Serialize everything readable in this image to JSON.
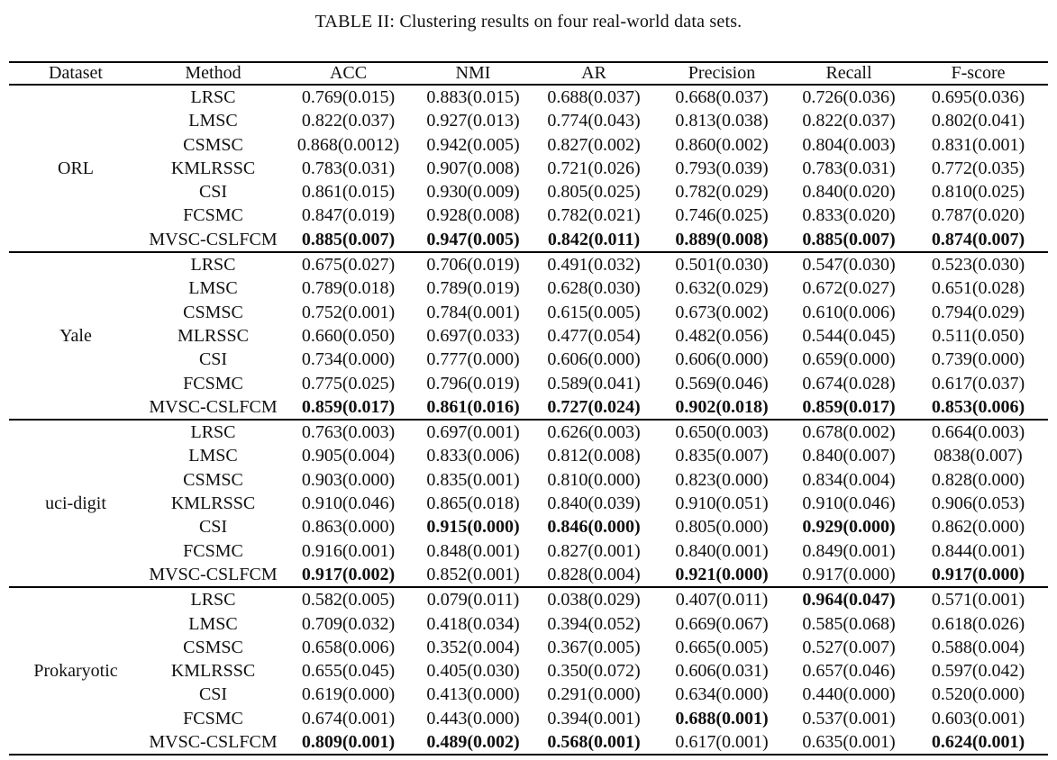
{
  "title": "TABLE II: Clustering results on four real-world data sets.",
  "table": {
    "columns": [
      "Dataset",
      "Method",
      "ACC",
      "NMI",
      "AR",
      "Precision",
      "Recall",
      "F-score"
    ],
    "groups": [
      {
        "dataset": "ORL",
        "rows": [
          {
            "method": "LRSC",
            "values": [
              "0.769(0.015)",
              "0.883(0.015)",
              "0.688(0.037)",
              "0.668(0.037)",
              "0.726(0.036)",
              "0.695(0.036)"
            ],
            "bold": [
              0,
              0,
              0,
              0,
              0,
              0
            ]
          },
          {
            "method": "LMSC",
            "values": [
              "0.822(0.037)",
              "0.927(0.013)",
              "0.774(0.043)",
              "0.813(0.038)",
              "0.822(0.037)",
              "0.802(0.041)"
            ],
            "bold": [
              0,
              0,
              0,
              0,
              0,
              0
            ]
          },
          {
            "method": "CSMSC",
            "values": [
              "0.868(0.0012)",
              "0.942(0.005)",
              "0.827(0.002)",
              "0.860(0.002)",
              "0.804(0.003)",
              "0.831(0.001)"
            ],
            "bold": [
              0,
              0,
              0,
              0,
              0,
              0
            ]
          },
          {
            "method": "KMLRSSC",
            "values": [
              "0.783(0.031)",
              "0.907(0.008)",
              "0.721(0.026)",
              "0.793(0.039)",
              "0.783(0.031)",
              "0.772(0.035)"
            ],
            "bold": [
              0,
              0,
              0,
              0,
              0,
              0
            ]
          },
          {
            "method": "CSI",
            "values": [
              "0.861(0.015)",
              "0.930(0.009)",
              "0.805(0.025)",
              "0.782(0.029)",
              "0.840(0.020)",
              "0.810(0.025)"
            ],
            "bold": [
              0,
              0,
              0,
              0,
              0,
              0
            ]
          },
          {
            "method": "FCSMC",
            "values": [
              "0.847(0.019)",
              "0.928(0.008)",
              "0.782(0.021)",
              "0.746(0.025)",
              "0.833(0.020)",
              "0.787(0.020)"
            ],
            "bold": [
              0,
              0,
              0,
              0,
              0,
              0
            ]
          },
          {
            "method": "MVSC-CSLFCM",
            "values": [
              "0.885(0.007)",
              "0.947(0.005)",
              "0.842(0.011)",
              "0.889(0.008)",
              "0.885(0.007)",
              "0.874(0.007)"
            ],
            "bold": [
              1,
              1,
              1,
              1,
              1,
              1
            ]
          }
        ]
      },
      {
        "dataset": "Yale",
        "rows": [
          {
            "method": "LRSC",
            "values": [
              "0.675(0.027)",
              "0.706(0.019)",
              "0.491(0.032)",
              "0.501(0.030)",
              "0.547(0.030)",
              "0.523(0.030)"
            ],
            "bold": [
              0,
              0,
              0,
              0,
              0,
              0
            ]
          },
          {
            "method": "LMSC",
            "values": [
              "0.789(0.018)",
              "0.789(0.019)",
              "0.628(0.030)",
              "0.632(0.029)",
              "0.672(0.027)",
              "0.651(0.028)"
            ],
            "bold": [
              0,
              0,
              0,
              0,
              0,
              0
            ]
          },
          {
            "method": "CSMSC",
            "values": [
              "0.752(0.001)",
              "0.784(0.001)",
              "0.615(0.005)",
              "0.673(0.002)",
              "0.610(0.006)",
              "0.794(0.029)"
            ],
            "bold": [
              0,
              0,
              0,
              0,
              0,
              0
            ]
          },
          {
            "method": "MLRSSC",
            "values": [
              "0.660(0.050)",
              "0.697(0.033)",
              "0.477(0.054)",
              "0.482(0.056)",
              "0.544(0.045)",
              "0.511(0.050)"
            ],
            "bold": [
              0,
              0,
              0,
              0,
              0,
              0
            ]
          },
          {
            "method": "CSI",
            "values": [
              "0.734(0.000)",
              "0.777(0.000)",
              "0.606(0.000)",
              "0.606(0.000)",
              "0.659(0.000)",
              "0.739(0.000)"
            ],
            "bold": [
              0,
              0,
              0,
              0,
              0,
              0
            ]
          },
          {
            "method": "FCSMC",
            "values": [
              "0.775(0.025)",
              "0.796(0.019)",
              "0.589(0.041)",
              "0.569(0.046)",
              "0.674(0.028)",
              "0.617(0.037)"
            ],
            "bold": [
              0,
              0,
              0,
              0,
              0,
              0
            ]
          },
          {
            "method": "MVSC-CSLFCM",
            "values": [
              "0.859(0.017)",
              "0.861(0.016)",
              "0.727(0.024)",
              "0.902(0.018)",
              "0.859(0.017)",
              "0.853(0.006)"
            ],
            "bold": [
              1,
              1,
              1,
              1,
              1,
              1
            ]
          }
        ]
      },
      {
        "dataset": "uci-digit",
        "rows": [
          {
            "method": "LRSC",
            "values": [
              "0.763(0.003)",
              "0.697(0.001)",
              "0.626(0.003)",
              "0.650(0.003)",
              "0.678(0.002)",
              "0.664(0.003)"
            ],
            "bold": [
              0,
              0,
              0,
              0,
              0,
              0
            ]
          },
          {
            "method": "LMSC",
            "values": [
              "0.905(0.004)",
              "0.833(0.006)",
              "0.812(0.008)",
              "0.835(0.007)",
              "0.840(0.007)",
              "0838(0.007)"
            ],
            "bold": [
              0,
              0,
              0,
              0,
              0,
              0
            ]
          },
          {
            "method": "CSMSC",
            "values": [
              "0.903(0.000)",
              "0.835(0.001)",
              "0.810(0.000)",
              "0.823(0.000)",
              "0.834(0.004)",
              "0.828(0.000)"
            ],
            "bold": [
              0,
              0,
              0,
              0,
              0,
              0
            ]
          },
          {
            "method": "KMLRSSC",
            "values": [
              "0.910(0.046)",
              "0.865(0.018)",
              "0.840(0.039)",
              "0.910(0.051)",
              "0.910(0.046)",
              "0.906(0.053)"
            ],
            "bold": [
              0,
              0,
              0,
              0,
              0,
              0
            ]
          },
          {
            "method": "CSI",
            "values": [
              "0.863(0.000)",
              "0.915(0.000)",
              "0.846(0.000)",
              "0.805(0.000)",
              "0.929(0.000)",
              "0.862(0.000)"
            ],
            "bold": [
              0,
              1,
              1,
              0,
              1,
              0
            ]
          },
          {
            "method": "FCSMC",
            "values": [
              "0.916(0.001)",
              "0.848(0.001)",
              "0.827(0.001)",
              "0.840(0.001)",
              "0.849(0.001)",
              "0.844(0.001)"
            ],
            "bold": [
              0,
              0,
              0,
              0,
              0,
              0
            ]
          },
          {
            "method": "MVSC-CSLFCM",
            "values": [
              "0.917(0.002)",
              "0.852(0.001)",
              "0.828(0.004)",
              "0.921(0.000)",
              "0.917(0.000)",
              "0.917(0.000)"
            ],
            "bold": [
              1,
              0,
              0,
              1,
              0,
              1
            ]
          }
        ]
      },
      {
        "dataset": "Prokaryotic",
        "rows": [
          {
            "method": "LRSC",
            "values": [
              "0.582(0.005)",
              "0.079(0.011)",
              "0.038(0.029)",
              "0.407(0.011)",
              "0.964(0.047)",
              "0.571(0.001)"
            ],
            "bold": [
              0,
              0,
              0,
              0,
              1,
              0
            ]
          },
          {
            "method": "LMSC",
            "values": [
              "0.709(0.032)",
              "0.418(0.034)",
              "0.394(0.052)",
              "0.669(0.067)",
              "0.585(0.068)",
              "0.618(0.026)"
            ],
            "bold": [
              0,
              0,
              0,
              0,
              0,
              0
            ]
          },
          {
            "method": "CSMSC",
            "values": [
              "0.658(0.006)",
              "0.352(0.004)",
              "0.367(0.005)",
              "0.665(0.005)",
              "0.527(0.007)",
              "0.588(0.004)"
            ],
            "bold": [
              0,
              0,
              0,
              0,
              0,
              0
            ]
          },
          {
            "method": "KMLRSSC",
            "values": [
              "0.655(0.045)",
              "0.405(0.030)",
              "0.350(0.072)",
              "0.606(0.031)",
              "0.657(0.046)",
              "0.597(0.042)"
            ],
            "bold": [
              0,
              0,
              0,
              0,
              0,
              0
            ]
          },
          {
            "method": "CSI",
            "values": [
              "0.619(0.000)",
              "0.413(0.000)",
              "0.291(0.000)",
              "0.634(0.000)",
              "0.440(0.000)",
              "0.520(0.000)"
            ],
            "bold": [
              0,
              0,
              0,
              0,
              0,
              0
            ]
          },
          {
            "method": "FCSMC",
            "values": [
              "0.674(0.001)",
              "0.443(0.000)",
              "0.394(0.001)",
              "0.688(0.001)",
              "0.537(0.001)",
              "0.603(0.001)"
            ],
            "bold": [
              0,
              0,
              0,
              1,
              0,
              0
            ]
          },
          {
            "method": "MVSC-CSLFCM",
            "values": [
              "0.809(0.001)",
              "0.489(0.002)",
              "0.568(0.001)",
              "0.617(0.001)",
              "0.635(0.001)",
              "0.624(0.001)"
            ],
            "bold": [
              1,
              1,
              1,
              0,
              0,
              1
            ]
          }
        ]
      }
    ]
  }
}
